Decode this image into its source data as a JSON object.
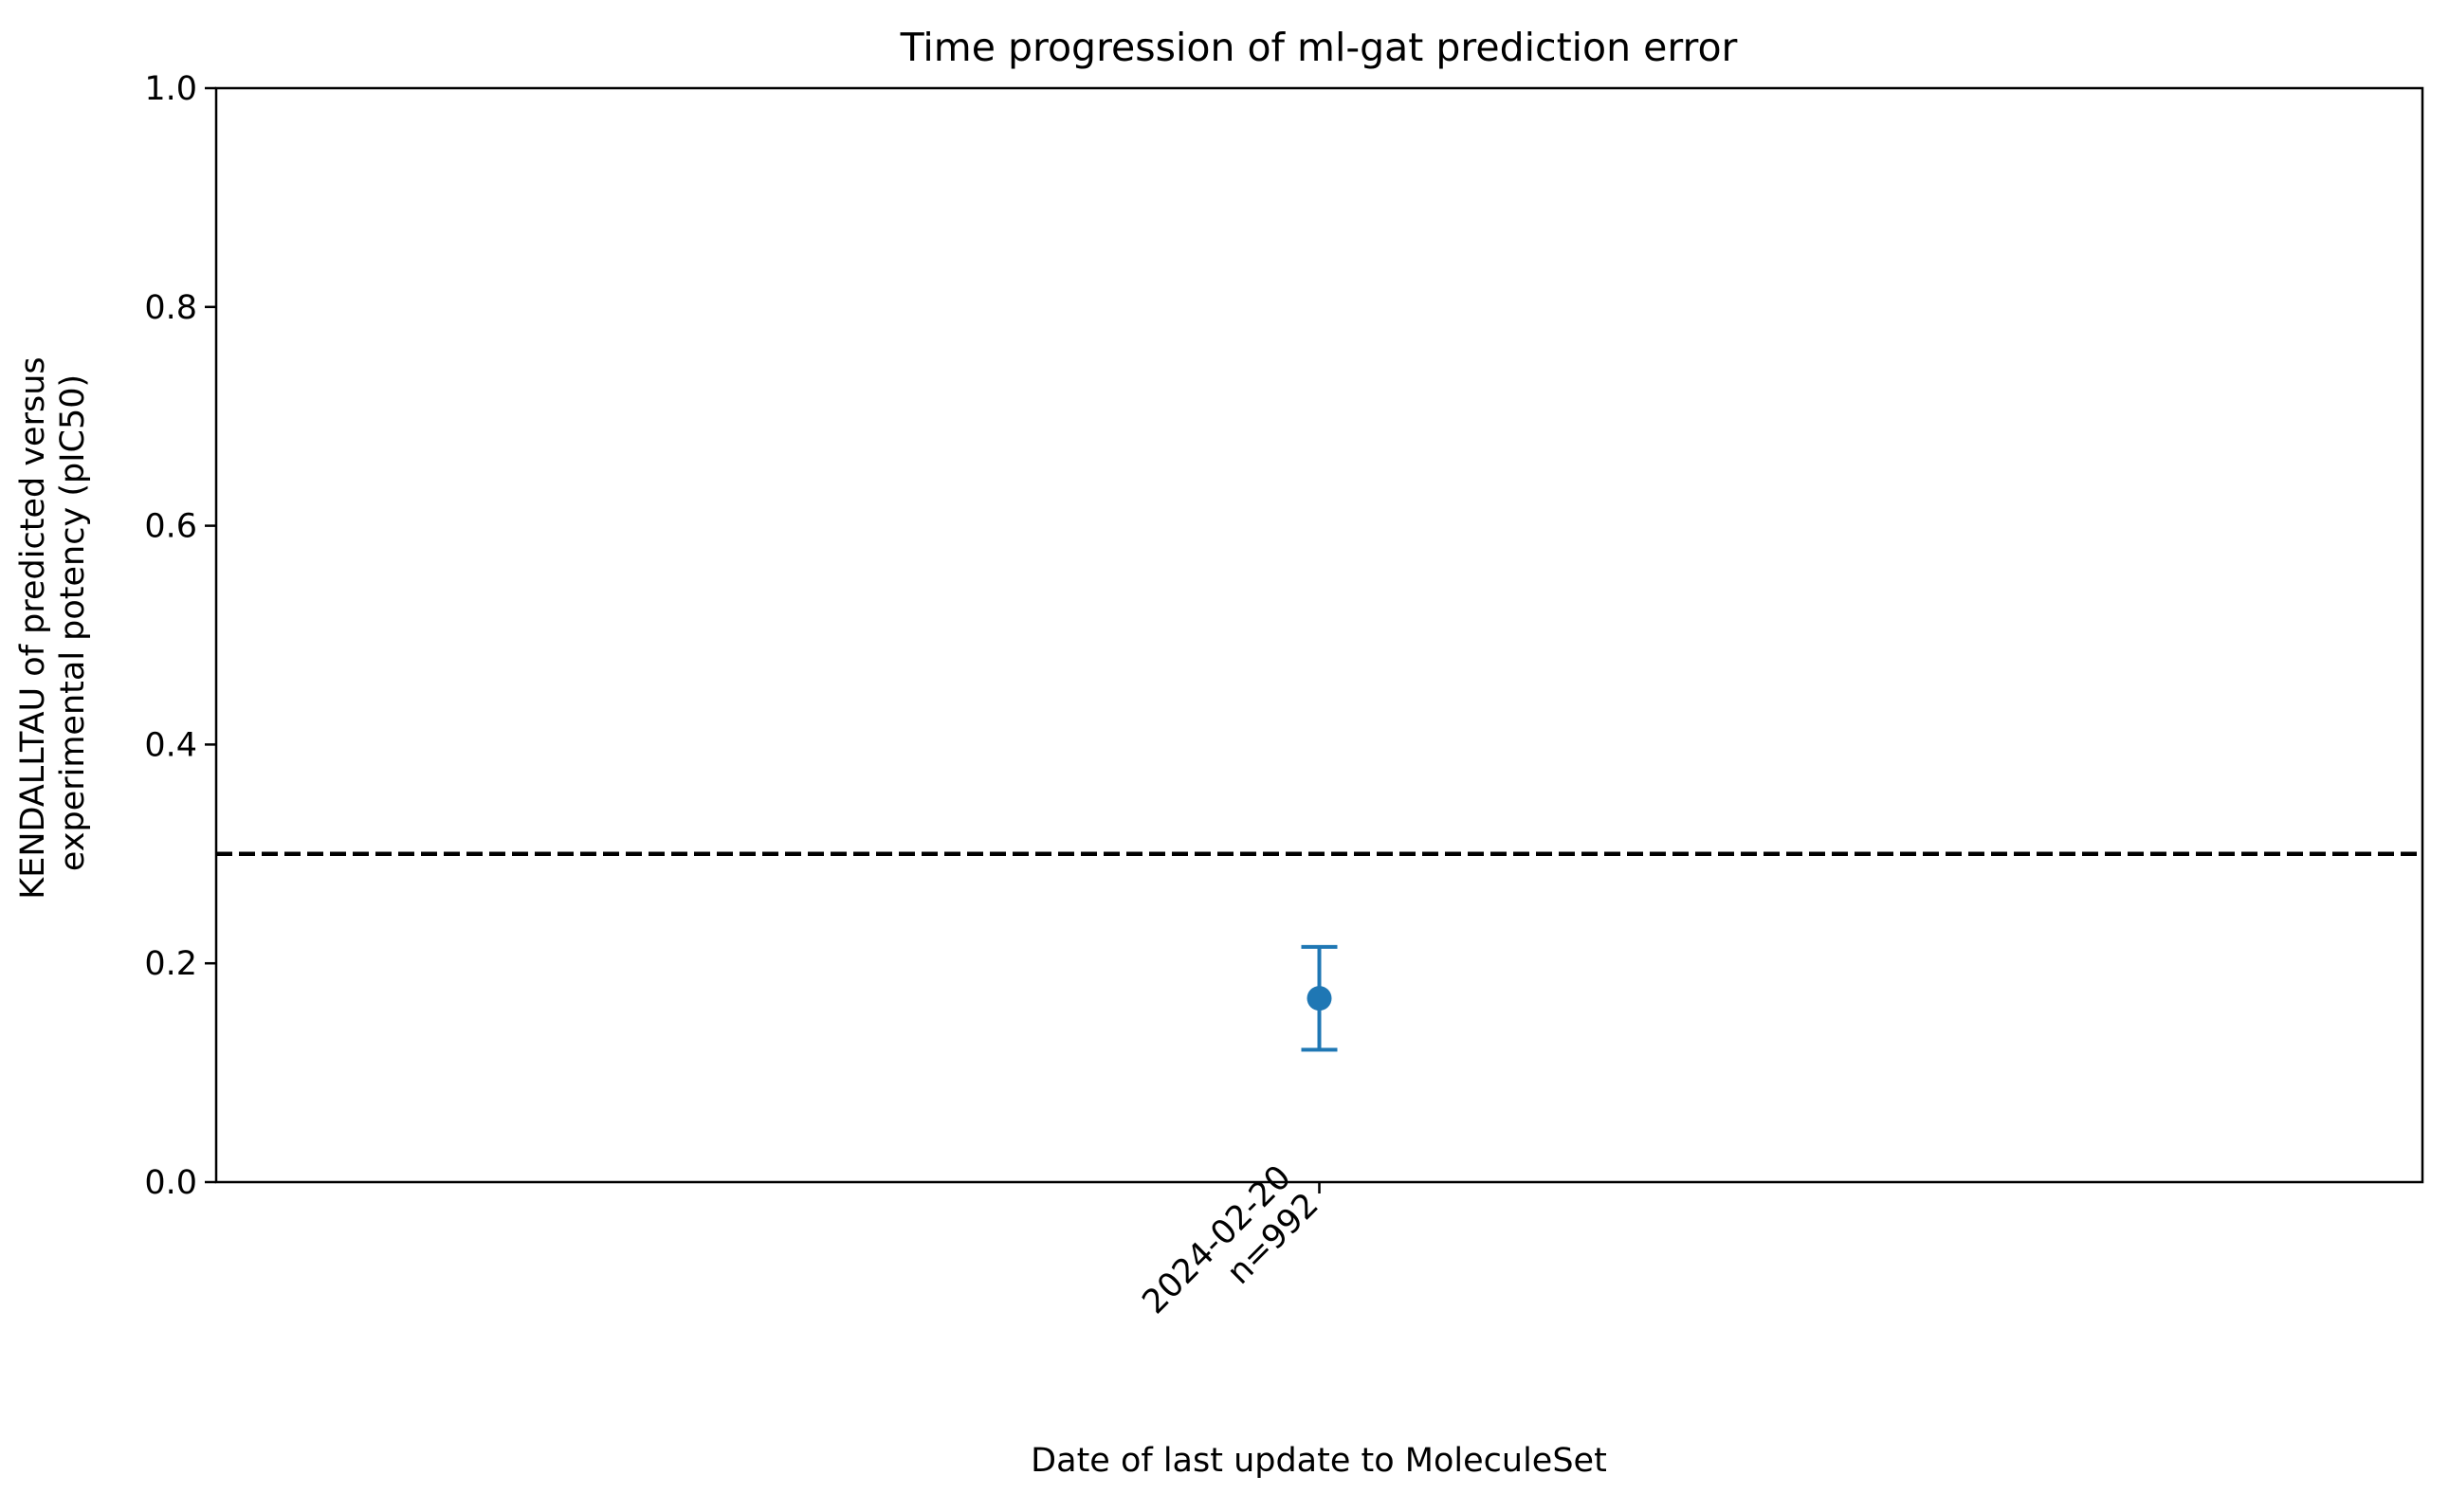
{
  "colors": {
    "series": "#1f77b4",
    "reference_line": "#000000",
    "axes": "#000000",
    "background": "#ffffff"
  },
  "chart_data": {
    "type": "scatter",
    "title": "Time progression of ml-gat prediction error",
    "xlabel": "Date of last update to MoleculeSet",
    "ylabel_lines": [
      "KENDALLTAU of predicted versus",
      "experimental potency (pIC50)"
    ],
    "ylim": [
      0,
      1
    ],
    "yticks": [
      0.0,
      0.2,
      0.4,
      0.6,
      0.8,
      1.0
    ],
    "ytick_labels": [
      "0.0",
      "0.2",
      "0.4",
      "0.6",
      "0.8",
      "1.0"
    ],
    "categories": [
      "2024-02-20"
    ],
    "xtick_labels": [
      [
        "2024-02-20",
        "n=992"
      ]
    ],
    "series": [
      {
        "values": [
          0.168
        ],
        "error_low": [
          0.121
        ],
        "error_high": [
          0.215
        ],
        "n": [
          992
        ]
      }
    ],
    "reference_line": {
      "y": 0.3,
      "style": "dashed"
    },
    "grid": false,
    "legend": "none"
  }
}
